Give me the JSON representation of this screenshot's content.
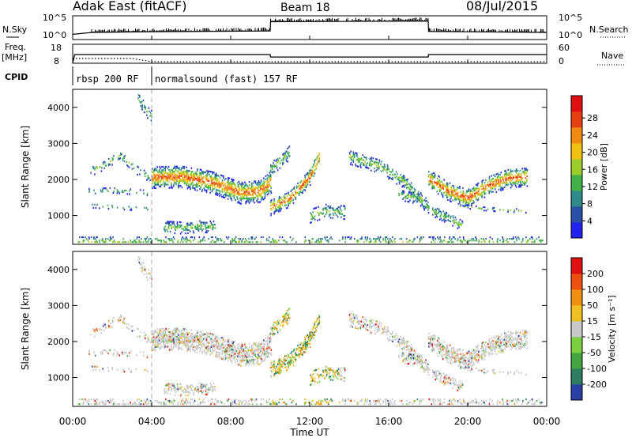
{
  "header": {
    "station": "Adak East (fitACF)",
    "beam": "Beam 18",
    "date": "08/Jul/2015"
  },
  "chart_data": [
    {
      "type": "line",
      "panel": "noise",
      "left_label": "N.Sky",
      "left_ticks": [
        "10^5",
        "10^0"
      ],
      "right_label": "N.Search",
      "right_ticks": [
        "10^5",
        "10^0"
      ],
      "x": [
        0,
        1,
        4,
        10,
        10.02,
        18,
        18.02,
        24
      ],
      "values": [
        0.22,
        0.3,
        0.33,
        0.36,
        0.75,
        0.78,
        0.34,
        0.3
      ]
    },
    {
      "type": "line",
      "panel": "frequency",
      "left_label": "Freq.",
      "left_unit": "[MHz]",
      "left_ticks": [
        "18",
        "8"
      ],
      "right_label": "Nave",
      "right_ticks": [
        "60",
        "0"
      ],
      "freq_x": [
        0,
        0.1,
        10,
        10.02,
        18,
        18.02,
        24
      ],
      "freq_values": [
        8,
        12.6,
        12.6,
        11.3,
        11.3,
        12.6,
        12.6
      ],
      "nave_x": [
        0,
        3,
        4,
        10,
        18,
        24
      ],
      "nave_values": [
        15,
        15,
        5,
        5,
        5,
        5
      ]
    },
    {
      "type": "table",
      "panel": "cpid",
      "label": "CPID",
      "segments": [
        {
          "start": 0,
          "end": 4,
          "text": "rbsp 200 RF"
        },
        {
          "start": 4,
          "end": 24,
          "text": "normalsound (fast) 157 RF"
        }
      ]
    },
    {
      "type": "heatmap",
      "panel": "power",
      "ylabel": "Slant Range [km]",
      "ylim": [
        200,
        4500
      ],
      "yticks": [
        1000,
        2000,
        3000,
        4000
      ],
      "colorbar": {
        "label": "Power [dB]",
        "ticks": [
          "4",
          "8",
          "12",
          "16",
          "20",
          "24",
          "28"
        ],
        "colors": [
          "#2222ee",
          "#2a4fa6",
          "#2f8a8a",
          "#43b04a",
          "#9ccc2c",
          "#f2c010",
          "#f08a10",
          "#e84010",
          "#e01010"
        ]
      },
      "ground_scatter_gray": false
    },
    {
      "type": "heatmap",
      "panel": "velocity",
      "ylabel": "Slant Range [km]",
      "ylim": [
        200,
        4500
      ],
      "yticks": [
        1000,
        2000,
        3000,
        4000
      ],
      "colorbar": {
        "label": "Velocity [m s⁻¹]",
        "ticks": [
          "200",
          "100",
          "50",
          "15",
          "-15",
          "-50",
          "-100",
          "-200"
        ],
        "colors": [
          "#2840a8",
          "#2e7e62",
          "#42a542",
          "#7cd040",
          "#c8c8c8",
          "#f0c020",
          "#f09010",
          "#ee5010",
          "#e01010"
        ]
      },
      "ground_scatter_gray": true
    }
  ],
  "echo_bands": [
    {
      "x": [
        0.9,
        1.5,
        2.4,
        3.2,
        4.0
      ],
      "r": [
        2250,
        2400,
        2700,
        2300,
        2050
      ],
      "w": 130,
      "p": 0.3
    },
    {
      "x": [
        0.8,
        2.0,
        3.8
      ],
      "r": [
        1700,
        1720,
        1650
      ],
      "w": 70,
      "p": 0.2
    },
    {
      "x": [
        0.9,
        2.5,
        3.8
      ],
      "r": [
        1300,
        1250,
        1200
      ],
      "w": 60,
      "p": 0.15
    },
    {
      "x": [
        3.3,
        3.6,
        4.0
      ],
      "r": [
        4300,
        4000,
        3750
      ],
      "w": 160,
      "p": 0.3
    },
    {
      "x": [
        4.0,
        5.5,
        7.0,
        8.5,
        9.5,
        10.0
      ],
      "r": [
        2080,
        2100,
        1950,
        1650,
        1700,
        1950
      ],
      "w": 300,
      "p": 0.7
    },
    {
      "x": [
        4.6,
        5.5,
        6.5,
        7.2
      ],
      "r": [
        700,
        680,
        720,
        700
      ],
      "w": 160,
      "p": 0.45
    },
    {
      "x": [
        10.0,
        11.0,
        12.0,
        12.5
      ],
      "r": [
        1250,
        1500,
        2100,
        2700
      ],
      "w": 220,
      "p": 0.6
    },
    {
      "x": [
        10.0,
        10.5,
        11.0
      ],
      "r": [
        2300,
        2550,
        2800
      ],
      "w": 200,
      "p": 0.4
    },
    {
      "x": [
        12.0,
        12.8,
        13.8
      ],
      "r": [
        1000,
        1150,
        1100
      ],
      "w": 180,
      "p": 0.4
    },
    {
      "x": [
        14.0,
        15.5,
        16.7,
        17.5,
        18.0
      ],
      "r": [
        2650,
        2400,
        2000,
        1550,
        1250
      ],
      "w": 200,
      "p": 0.45
    },
    {
      "x": [
        16.5,
        17.5,
        18.0
      ],
      "r": [
        1600,
        1500,
        1250
      ],
      "w": 150,
      "p": 0.3
    },
    {
      "x": [
        18.0,
        19.0,
        20.0,
        21.0,
        22.0,
        23.0
      ],
      "r": [
        2050,
        1700,
        1500,
        1850,
        2050,
        2100
      ],
      "w": 260,
      "p": 0.6
    },
    {
      "x": [
        18.2,
        19.0,
        19.7
      ],
      "r": [
        1150,
        950,
        750
      ],
      "w": 150,
      "p": 0.5
    },
    {
      "x": [
        19.5,
        21.0,
        23.0
      ],
      "r": [
        1300,
        1200,
        1150
      ],
      "w": 50,
      "p": 0.2
    },
    {
      "x": [
        0.2,
        6,
        12,
        18,
        23.8
      ],
      "r": [
        300,
        300,
        300,
        300,
        300
      ],
      "w": 150,
      "p": 0.25
    }
  ],
  "xaxis": {
    "ticks": [
      "00:00",
      "04:00",
      "08:00",
      "12:00",
      "16:00",
      "20:00",
      "00:00"
    ],
    "label": "Time UT"
  }
}
